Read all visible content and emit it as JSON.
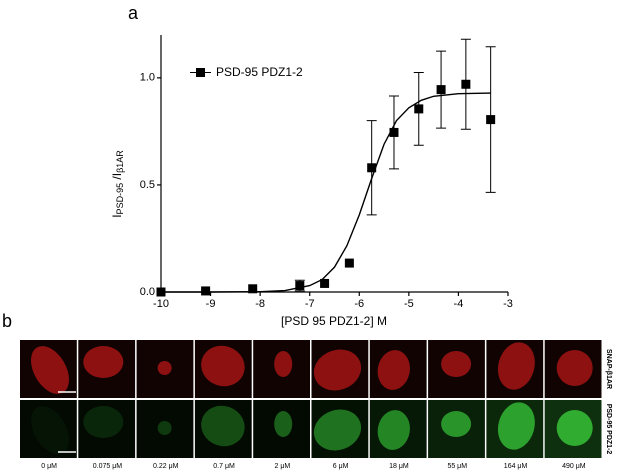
{
  "chart_data": {
    "type": "scatter",
    "panel_labels": [
      "a",
      "b"
    ],
    "legend": "PSD-95 PDZ1-2",
    "xlabel": "[PSD 95 PDZ1-2] M",
    "ylabel": [
      "I",
      "PSD-95",
      " /I",
      "β1AR"
    ],
    "x": [
      -10,
      -9.1,
      -8.15,
      -7.2,
      -6.7,
      -6.2,
      -5.75,
      -5.3,
      -4.8,
      -4.35,
      -3.85,
      -3.35
    ],
    "values": [
      0.0,
      0.005,
      0.015,
      0.03,
      0.04,
      0.135,
      0.58,
      0.745,
      0.855,
      0.945,
      0.97,
      0.805
    ],
    "errors": [
      null,
      null,
      null,
      0.025,
      null,
      null,
      0.22,
      0.17,
      0.17,
      0.18,
      0.21,
      0.34
    ],
    "color": "#000000",
    "fit": {
      "x": [
        -10,
        -9,
        -8,
        -7.5,
        -7,
        -6.75,
        -6.5,
        -6.25,
        -6,
        -5.75,
        -5.5,
        -5.25,
        -5,
        -4.75,
        -4.5,
        -4,
        -3.35
      ],
      "values": [
        0,
        0,
        0.0015,
        0.0067,
        0.03,
        0.058,
        0.116,
        0.216,
        0.36,
        0.53,
        0.69,
        0.8,
        0.86,
        0.895,
        0.914,
        0.926,
        0.929
      ]
    },
    "xlim": [
      -10,
      -3
    ],
    "xticks": [
      -10,
      -9,
      -8,
      -7,
      -6,
      -5,
      -4,
      -3
    ],
    "ylim": [
      0,
      1.2
    ],
    "yticks": [
      {
        "value": 0,
        "label": "0.0"
      },
      0.5,
      {
        "value": 1,
        "label": "1.0"
      }
    ],
    "images": {
      "rows": [
        "SNAP-β1AR",
        "PSD-95 PDZ1-2"
      ],
      "columns": [
        "0 μM",
        "0.075 μM",
        "0.22 μM",
        "0.7 μM",
        "2 μM",
        "6 μM",
        "18 μM",
        "55 μM",
        "164 μM",
        "490 μM"
      ]
    }
  }
}
